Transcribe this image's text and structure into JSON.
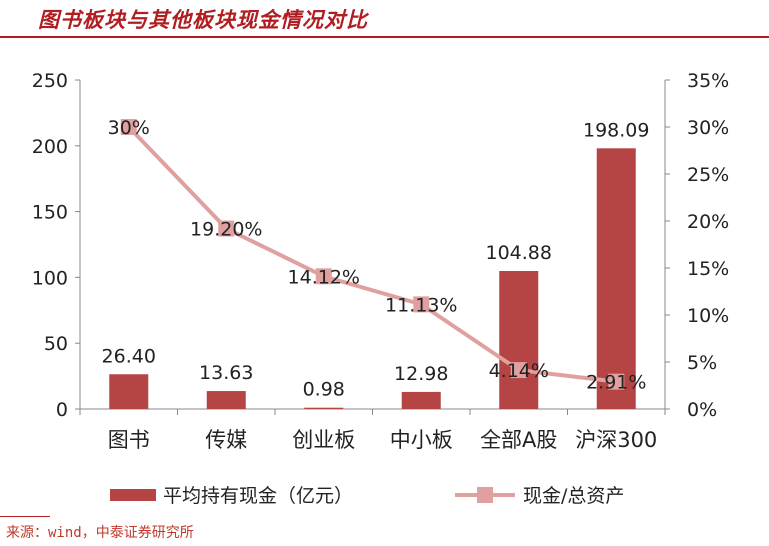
{
  "header": {
    "title": "图书板块与其他板块现金情况对比"
  },
  "chart_data": {
    "type": "bar",
    "categories": [
      "图书",
      "传媒",
      "创业板",
      "中小板",
      "全部A股",
      "沪深300"
    ],
    "series": [
      {
        "name": "平均持有现金（亿元）",
        "type": "bar",
        "axis": "left",
        "values": [
          26.4,
          13.63,
          0.98,
          12.98,
          104.88,
          198.09
        ],
        "labels": [
          "26.40",
          "13.63",
          "0.98",
          "12.98",
          "104.88",
          "198.09"
        ],
        "color": "#b54444"
      },
      {
        "name": "现金/总资产",
        "type": "line",
        "axis": "right",
        "values": [
          30,
          19.2,
          14.12,
          11.13,
          4.14,
          2.91
        ],
        "labels": [
          "30%",
          "19.20%",
          "14.12%",
          "11.13%",
          "4.14%",
          "2.91%"
        ],
        "color": "#e0a0a0"
      }
    ],
    "y_left": {
      "range": [
        0,
        250
      ],
      "ticks": [
        "0",
        "50",
        "100",
        "150",
        "200",
        "250"
      ]
    },
    "y_right": {
      "range": [
        0,
        35
      ],
      "ticks": [
        "0%",
        "5%",
        "10%",
        "15%",
        "20%",
        "25%",
        "30%",
        "35%"
      ]
    },
    "grid": false,
    "legend_position": "bottom"
  },
  "footer": {
    "source": "来源：wind，中泰证券研究所"
  }
}
